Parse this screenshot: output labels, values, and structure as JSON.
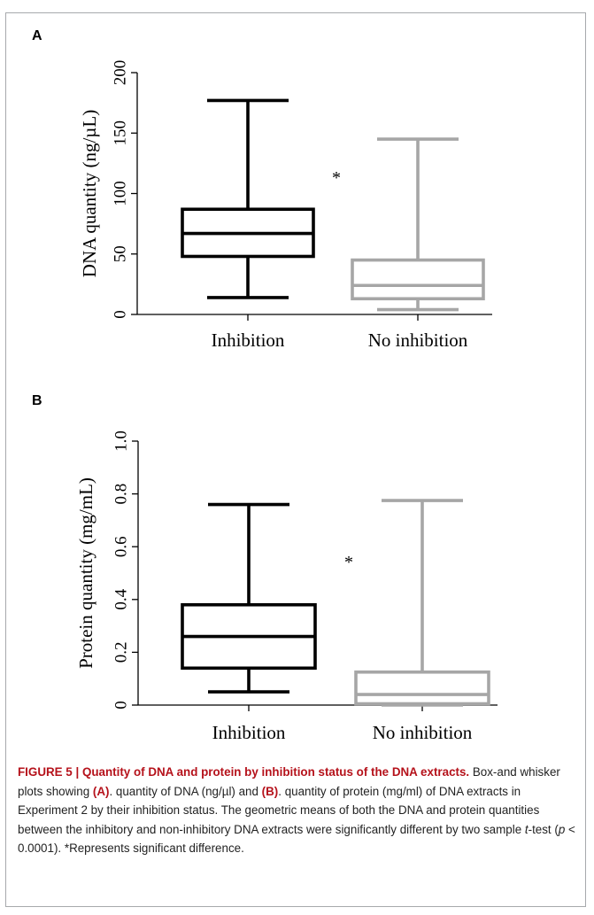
{
  "panels": [
    {
      "label": "A"
    },
    {
      "label": "B"
    }
  ],
  "caption": {
    "figure_title": "FIGURE 5 | Quantity of DNA and protein by inhibition status of the DNA extracts.",
    "part1": " Box-and whisker plots showing ",
    "ref_a": "(A)",
    "part2": ". quantity of DNA (ng/µl) and ",
    "ref_b": "(B)",
    "part3": ". quantity of protein (mg/ml) of DNA extracts in Experiment 2 by their inhibition status. The geometric means of both the DNA and protein quantities between the inhibitory and non-inhibitory DNA extracts were significantly different by two sample ",
    "t_italic": "t",
    "part4": "-test (",
    "p_italic": "p",
    "part5": " < 0.0001). *Represents significant difference."
  },
  "chart_data": [
    {
      "type": "box",
      "panel": "A",
      "ylabel": "DNA quantity (ng/µL)",
      "ylim": [
        0,
        200
      ],
      "yticks": [
        0,
        50,
        100,
        150,
        200
      ],
      "ytick_labels": [
        "0",
        "50",
        "100",
        "150",
        "200"
      ],
      "categories": [
        "Inhibition",
        "No inhibition"
      ],
      "series": [
        {
          "name": "Inhibition",
          "color": "#000000",
          "min": 14,
          "q1": 48,
          "median": 67,
          "q3": 87,
          "max": 177
        },
        {
          "name": "No inhibition",
          "color": "#a6a6a6",
          "min": 4,
          "q1": 13,
          "median": 24,
          "q3": 45,
          "max": 145
        }
      ],
      "annotation": "*",
      "grid": false
    },
    {
      "type": "box",
      "panel": "B",
      "ylabel": "Protein quantity (mg/mL)",
      "ylim": [
        0,
        1.0
      ],
      "yticks": [
        0,
        0.2,
        0.4,
        0.6,
        0.8,
        1.0
      ],
      "ytick_labels": [
        "0",
        "0.2",
        "0.4",
        "0.6",
        "0.8",
        "1.0"
      ],
      "categories": [
        "Inhibition",
        "No inhibition"
      ],
      "series": [
        {
          "name": "Inhibition",
          "color": "#000000",
          "min": 0.05,
          "q1": 0.14,
          "median": 0.26,
          "q3": 0.38,
          "max": 0.76
        },
        {
          "name": "No inhibition",
          "color": "#a6a6a6",
          "min": 0.0,
          "q1": 0.005,
          "median": 0.04,
          "q3": 0.125,
          "max": 0.775
        },
        {
          "name": "",
          "color": "",
          "min": 0,
          "q1": 0,
          "median": 0,
          "q3": 0,
          "max": 0
        }
      ],
      "annotation": "*",
      "grid": false
    }
  ]
}
